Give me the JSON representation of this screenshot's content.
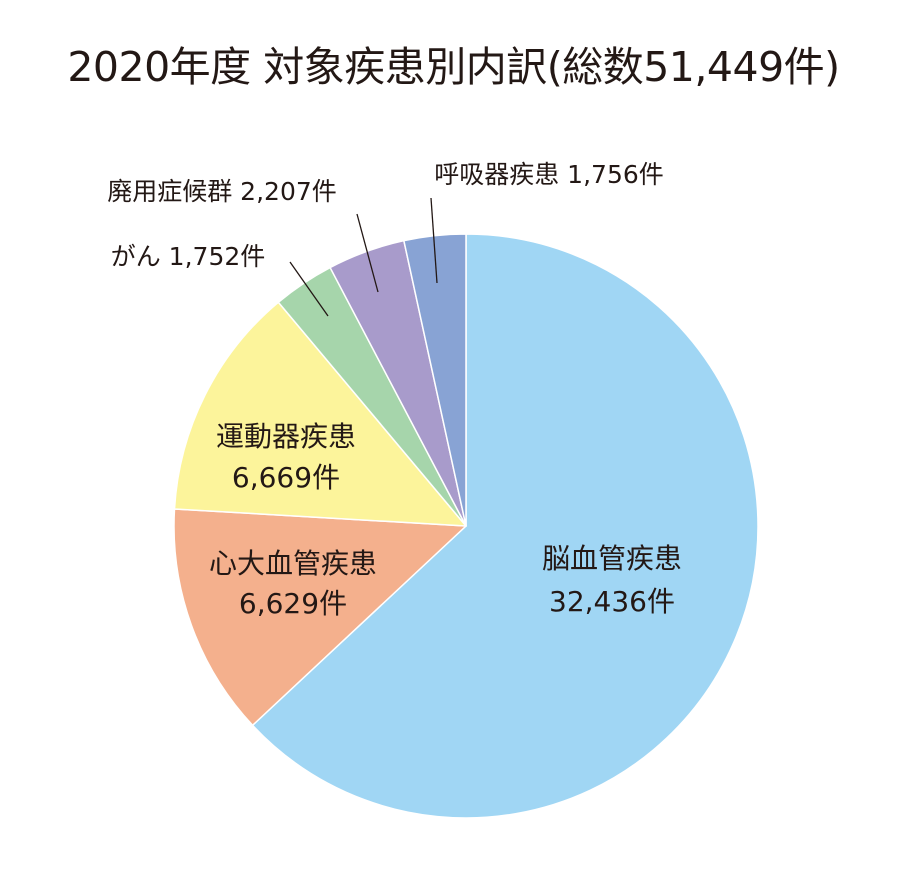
{
  "chart_data": {
    "type": "pie",
    "title": "2020年度 対象疾患別内訳(総数51,449件)",
    "unit": "件",
    "slices": [
      {
        "category": "脳血管疾患",
        "count_label": "32,436件",
        "value": 32436,
        "color": "#a0d6f4"
      },
      {
        "category": "心大血管疾患",
        "count_label": "6,629件",
        "value": 6629,
        "color": "#f4b08d"
      },
      {
        "category": "運動器疾患",
        "count_label": "6,669件",
        "value": 6669,
        "color": "#fcf49b"
      },
      {
        "category": "がん",
        "count_label": "1,752件",
        "value": 1752,
        "color": "#a6d5ab"
      },
      {
        "category": "廃用症候群",
        "count_label": "2,207件",
        "value": 2207,
        "color": "#a89bcb"
      },
      {
        "category": "呼吸器疾患",
        "count_label": "1,756件",
        "value": 1756,
        "color": "#88a3d4"
      }
    ],
    "total": 51449,
    "direction": "clockwise",
    "start": "12 o'clock",
    "legend": "none"
  }
}
